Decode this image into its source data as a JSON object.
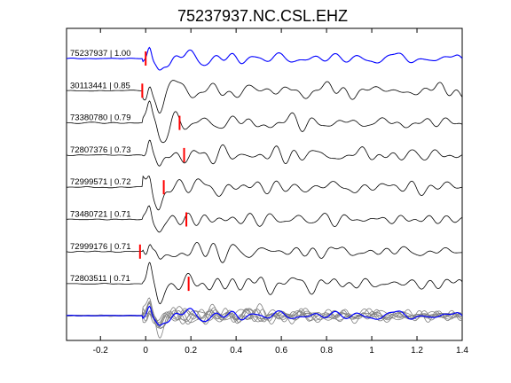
{
  "chart_data": {
    "type": "line",
    "title": "75237937.NC.CSL.EHZ",
    "xlabel": "",
    "ylabel": "",
    "xlim": [
      -0.35,
      1.4
    ],
    "xticks": [
      -0.2,
      0,
      0.2,
      0.4,
      0.6,
      0.8,
      1,
      1.2,
      1.4
    ],
    "xtick_labels": [
      "-0.2",
      "0",
      "0.2",
      "0.4",
      "0.6",
      "0.8",
      "1",
      "1.2",
      "1.4"
    ],
    "grid": false,
    "legend": "none",
    "colors": {
      "reference_trace": "#0000ff",
      "other_traces": "#000000",
      "pick_marker": "#ff0000",
      "stack_traces": "#808080",
      "stack_reference": "#0000ff"
    },
    "traces": [
      {
        "event_id": "75237937",
        "correlation": "1.00",
        "label": "75237937 | 1.00",
        "pick_time": 0.0,
        "reference": true
      },
      {
        "event_id": "30113441",
        "correlation": "0.85",
        "label": "30113441 | 0.85",
        "pick_time": -0.015,
        "reference": false
      },
      {
        "event_id": "73380780",
        "correlation": "0.79",
        "label": "73380780 | 0.79",
        "pick_time": 0.15,
        "reference": false
      },
      {
        "event_id": "72807376",
        "correlation": "0.73",
        "label": "72807376 | 0.73",
        "pick_time": 0.17,
        "reference": false
      },
      {
        "event_id": "72999571",
        "correlation": "0.72",
        "label": "72999571 | 0.72",
        "pick_time": 0.08,
        "reference": false
      },
      {
        "event_id": "73480721",
        "correlation": "0.71",
        "label": "73480721 | 0.71",
        "pick_time": 0.18,
        "reference": false
      },
      {
        "event_id": "72999176",
        "correlation": "0.71",
        "label": "72999176 | 0.71",
        "pick_time": -0.025,
        "reference": false
      },
      {
        "event_id": "72803511",
        "correlation": "0.71",
        "label": "72803511 | 0.71",
        "pick_time": 0.19,
        "reference": false
      }
    ],
    "stack_panel": {
      "overlay_count": 8,
      "has_reference_overlay": true
    }
  }
}
